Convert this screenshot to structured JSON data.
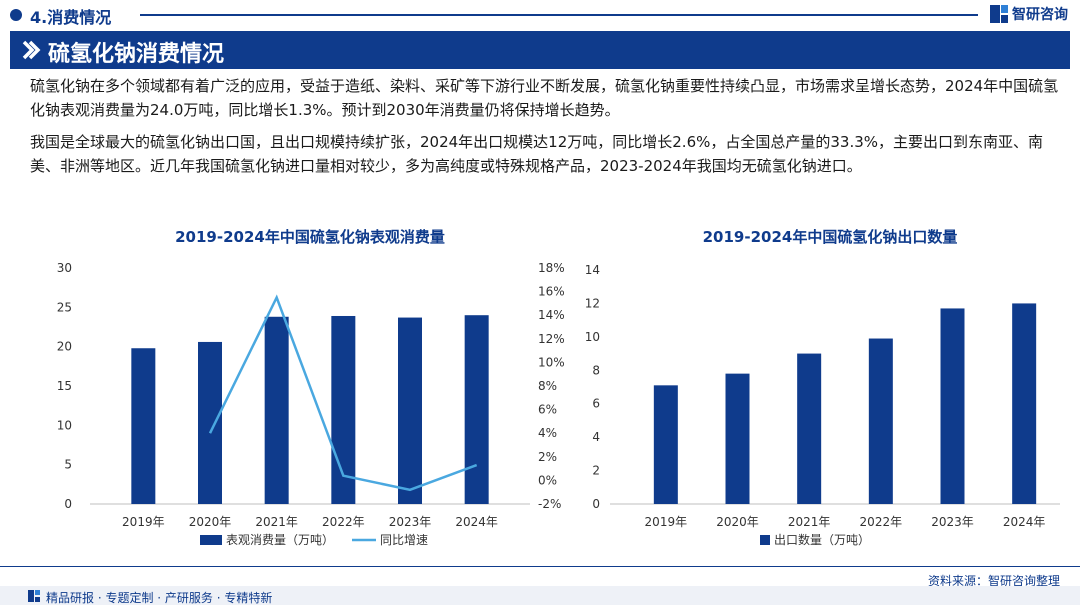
{
  "header": {
    "section_title": "4.消费情况",
    "logo_text": "智研咨询"
  },
  "banner": {
    "title": "硫氢化钠消费情况"
  },
  "paragraphs": [
    "硫氢化钠在多个领域都有着广泛的应用，受益于造纸、染料、采矿等下游行业不断发展，硫氢化钠重要性持续凸显，市场需求呈增长态势，2024年中国硫氢化钠表观消费量为24.0万吨，同比增长1.3%。预计到2030年消费量仍将保持增长趋势。",
    "我国是全球最大的硫氢化钠出口国，且出口规模持续扩张，2024年出口规模达12万吨，同比增长2.6%，占全国总产量的33.3%，主要出口到东南亚、南美、非洲等地区。近几年我国硫氢化钠进口量相对较少，多为高纯度或特殊规格产品，2023-2024年我国均无硫氢化钠进口。"
  ],
  "chart_data": [
    {
      "type": "bar+line",
      "title": "2019-2024年中国硫氢化钠表观消费量",
      "categories": [
        "2019年",
        "2020年",
        "2021年",
        "2022年",
        "2023年",
        "2024年"
      ],
      "series": [
        {
          "name": "表观消费量（万吨）",
          "type": "bar",
          "axis": "left",
          "values": [
            19.8,
            20.6,
            23.8,
            23.9,
            23.7,
            24.0
          ]
        },
        {
          "name": "同比增速",
          "type": "line",
          "axis": "right",
          "values": [
            null,
            4.0,
            15.5,
            0.4,
            -0.8,
            1.3
          ]
        }
      ],
      "ylim": [
        0,
        30
      ],
      "yticks": [
        0,
        5,
        10,
        15,
        20,
        25,
        30
      ],
      "y2lim": [
        -2,
        18
      ],
      "y2ticks": [
        -2,
        0,
        2,
        4,
        6,
        8,
        10,
        12,
        14,
        16,
        18
      ],
      "y2_unit": "%",
      "colors": {
        "bar": "#0f3b8c",
        "line": "#4aa8e0"
      },
      "legend": "bottom"
    },
    {
      "type": "bar",
      "title": "2019-2024年中国硫氢化钠出口数量",
      "categories": [
        "2019年",
        "2020年",
        "2021年",
        "2022年",
        "2023年",
        "2024年"
      ],
      "series": [
        {
          "name": "出口数量（万吨）",
          "type": "bar",
          "values": [
            7.1,
            7.8,
            9.0,
            9.9,
            11.7,
            12.0
          ]
        }
      ],
      "ylim": [
        0,
        14
      ],
      "yticks": [
        0,
        2,
        4,
        6,
        8,
        10,
        12,
        14
      ],
      "colors": {
        "bar": "#0f3b8c"
      },
      "legend": "bottom"
    }
  ],
  "footer": {
    "source": "资料来源：智研咨询整理",
    "services": "精品研报 · 专题定制 · 产研服务 · 专精特新"
  }
}
